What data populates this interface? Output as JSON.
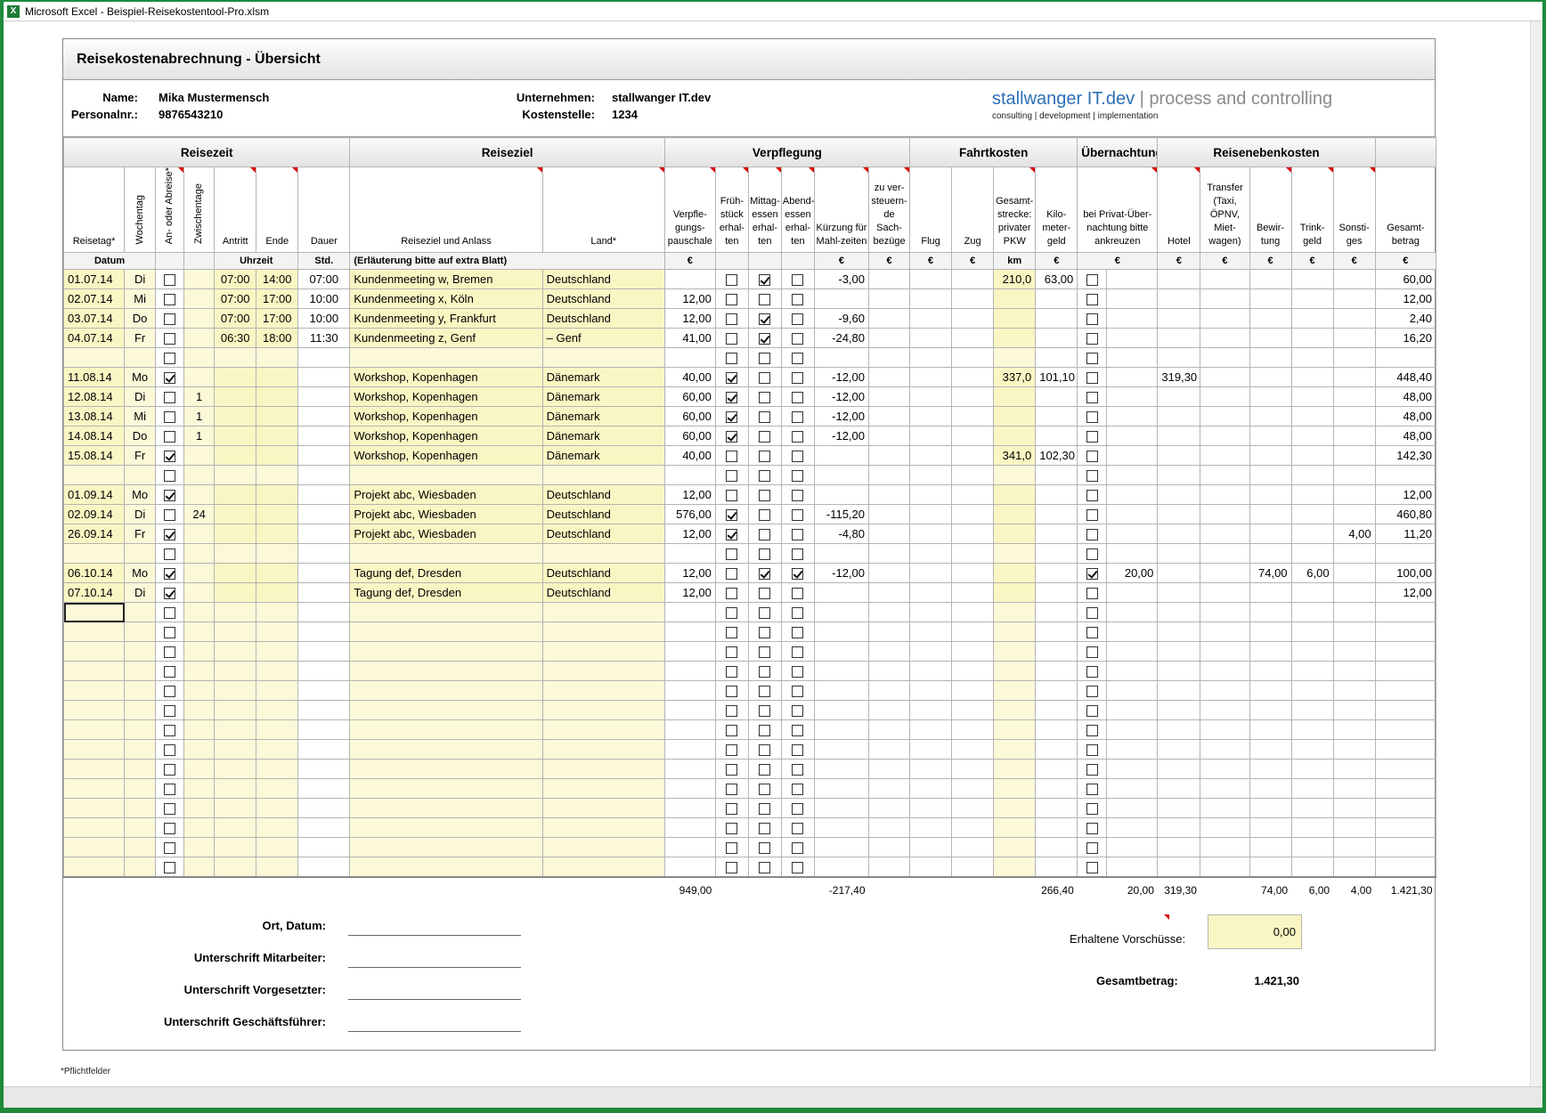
{
  "window": {
    "title": "Microsoft Excel - Beispiel-Reisekostentool-Pro.xlsm",
    "app_icon": "X"
  },
  "sheet": {
    "title": "Reisekostenabrechnung - Übersicht",
    "name_label": "Name:",
    "name_value": "Mika Mustermensch",
    "personnel_label": "Personalnr.:",
    "personnel_value": "9876543210",
    "company_label": "Unternehmen:",
    "company_value": "stallwanger IT.dev",
    "cost_center_label": "Kostenstelle:",
    "cost_center_value": "1234",
    "logo_main": "stallwanger IT.dev",
    "logo_sep": " | ",
    "logo_tail": "process and controlling",
    "logo_sub": "consulting | development | implementation"
  },
  "groups": {
    "reisezeit": "Reisezeit",
    "reiseziel": "Reiseziel",
    "verpflegung": "Verpflegung",
    "fahrtkosten": "Fahrtkosten",
    "uebernachtung": "Übernachtung",
    "nebenkosten": "Reisenebenkosten"
  },
  "headers": {
    "reisetag": "Reisetag*",
    "wochentag": "Wochentag",
    "an_ab": "An- oder Abreise*",
    "zwischentage": "Zwischentage",
    "antritt": "Antritt",
    "ende": "Ende",
    "dauer": "Dauer",
    "ziel": "Reiseziel und Anlass",
    "land": "Land*",
    "pauschale": "Verpfle-gungs-pauschale",
    "fruehstueck": "Früh-stück erhal-ten",
    "mittag": "Mittag-essen erhal-ten",
    "abend": "Abend-essen erhal-ten",
    "kuerzung": "Kürzung für Mahl-zeiten",
    "sachbezuege": "zu ver-steuern-de Sach-bezüge",
    "flug": "Flug",
    "zug": "Zug",
    "strecke": "Gesamt-strecke: privater PKW",
    "kilometergeld": "Kilo-meter-geld",
    "privat": "bei Privat-Über-nachtung bitte ankreuzen",
    "hotel": "Hotel",
    "transfer": "Transfer (Taxi, ÖPNV, Miet-wagen)",
    "bewirtung": "Bewir-tung",
    "trinkgeld": "Trink-geld",
    "sonstiges": "Sonsti-ges",
    "gesamt": "Gesamt-betrag"
  },
  "units": {
    "datum": "Datum",
    "uhrzeit": "Uhrzeit",
    "std": "Std.",
    "erlaeuterung": "(Erläuterung bitte auf extra Blatt)",
    "eur": "€",
    "km": "km"
  },
  "rows": [
    {
      "date": "01.07.14",
      "wd": "Di",
      "anab": false,
      "zw": "",
      "start": "07:00",
      "end": "14:00",
      "dur": "07:00",
      "ziel": "Kundenmeeting w, Bremen",
      "land": "Deutschland",
      "pausch": "",
      "f": false,
      "m": true,
      "a": false,
      "kuerz": "-3,00",
      "sach": "",
      "flug": "",
      "zug": "",
      "km": "210,0",
      "kmgeld": "63,00",
      "privat": false,
      "privat_amt": "",
      "hotel": "",
      "transfer": "",
      "bewirt": "",
      "trink": "",
      "sonst": "",
      "gesamt": "60,00"
    },
    {
      "date": "02.07.14",
      "wd": "Mi",
      "anab": false,
      "zw": "",
      "start": "07:00",
      "end": "17:00",
      "dur": "10:00",
      "ziel": "Kundenmeeting x, Köln",
      "land": "Deutschland",
      "pausch": "12,00",
      "f": false,
      "m": false,
      "a": false,
      "kuerz": "",
      "sach": "",
      "flug": "",
      "zug": "",
      "km": "",
      "kmgeld": "",
      "privat": false,
      "privat_amt": "",
      "hotel": "",
      "transfer": "",
      "bewirt": "",
      "trink": "",
      "sonst": "",
      "gesamt": "12,00"
    },
    {
      "date": "03.07.14",
      "wd": "Do",
      "anab": false,
      "zw": "",
      "start": "07:00",
      "end": "17:00",
      "dur": "10:00",
      "ziel": "Kundenmeeting y, Frankfurt",
      "land": "Deutschland",
      "pausch": "12,00",
      "f": false,
      "m": true,
      "a": false,
      "kuerz": "-9,60",
      "sach": "",
      "flug": "",
      "zug": "",
      "km": "",
      "kmgeld": "",
      "privat": false,
      "privat_amt": "",
      "hotel": "",
      "transfer": "",
      "bewirt": "",
      "trink": "",
      "sonst": "",
      "gesamt": "2,40"
    },
    {
      "date": "04.07.14",
      "wd": "Fr",
      "anab": false,
      "zw": "",
      "start": "06:30",
      "end": "18:00",
      "dur": "11:30",
      "ziel": "Kundenmeeting z, Genf",
      "land": "– Genf",
      "pausch": "41,00",
      "f": false,
      "m": true,
      "a": false,
      "kuerz": "-24,80",
      "sach": "",
      "flug": "",
      "zug": "",
      "km": "",
      "kmgeld": "",
      "privat": false,
      "privat_amt": "",
      "hotel": "",
      "transfer": "",
      "bewirt": "",
      "trink": "",
      "sonst": "",
      "gesamt": "16,20"
    },
    {
      "empty": true
    },
    {
      "date": "11.08.14",
      "wd": "Mo",
      "anab": true,
      "zw": "",
      "start": "",
      "end": "",
      "dur": "",
      "ziel": "Workshop, Kopenhagen",
      "land": "Dänemark",
      "pausch": "40,00",
      "f": true,
      "m": false,
      "a": false,
      "kuerz": "-12,00",
      "sach": "",
      "flug": "",
      "zug": "",
      "km": "337,0",
      "kmgeld": "101,10",
      "privat": false,
      "privat_amt": "",
      "hotel": "319,30",
      "transfer": "",
      "bewirt": "",
      "trink": "",
      "sonst": "",
      "gesamt": "448,40"
    },
    {
      "date": "12.08.14",
      "wd": "Di",
      "anab": false,
      "zw": "1",
      "start": "",
      "end": "",
      "dur": "",
      "ziel": "Workshop, Kopenhagen",
      "land": "Dänemark",
      "pausch": "60,00",
      "f": true,
      "m": false,
      "a": false,
      "kuerz": "-12,00",
      "sach": "",
      "flug": "",
      "zug": "",
      "km": "",
      "kmgeld": "",
      "privat": false,
      "privat_amt": "",
      "hotel": "",
      "transfer": "",
      "bewirt": "",
      "trink": "",
      "sonst": "",
      "gesamt": "48,00"
    },
    {
      "date": "13.08.14",
      "wd": "Mi",
      "anab": false,
      "zw": "1",
      "start": "",
      "end": "",
      "dur": "",
      "ziel": "Workshop, Kopenhagen",
      "land": "Dänemark",
      "pausch": "60,00",
      "f": true,
      "m": false,
      "a": false,
      "kuerz": "-12,00",
      "sach": "",
      "flug": "",
      "zug": "",
      "km": "",
      "kmgeld": "",
      "privat": false,
      "privat_amt": "",
      "hotel": "",
      "transfer": "",
      "bewirt": "",
      "trink": "",
      "sonst": "",
      "gesamt": "48,00"
    },
    {
      "date": "14.08.14",
      "wd": "Do",
      "anab": false,
      "zw": "1",
      "start": "",
      "end": "",
      "dur": "",
      "ziel": "Workshop, Kopenhagen",
      "land": "Dänemark",
      "pausch": "60,00",
      "f": true,
      "m": false,
      "a": false,
      "kuerz": "-12,00",
      "sach": "",
      "flug": "",
      "zug": "",
      "km": "",
      "kmgeld": "",
      "privat": false,
      "privat_amt": "",
      "hotel": "",
      "transfer": "",
      "bewirt": "",
      "trink": "",
      "sonst": "",
      "gesamt": "48,00"
    },
    {
      "date": "15.08.14",
      "wd": "Fr",
      "anab": true,
      "zw": "",
      "start": "",
      "end": "",
      "dur": "",
      "ziel": "Workshop, Kopenhagen",
      "land": "Dänemark",
      "pausch": "40,00",
      "f": false,
      "m": false,
      "a": false,
      "kuerz": "",
      "sach": "",
      "flug": "",
      "zug": "",
      "km": "341,0",
      "kmgeld": "102,30",
      "privat": false,
      "privat_amt": "",
      "hotel": "",
      "transfer": "",
      "bewirt": "",
      "trink": "",
      "sonst": "",
      "gesamt": "142,30"
    },
    {
      "empty": true
    },
    {
      "date": "01.09.14",
      "wd": "Mo",
      "anab": true,
      "zw": "",
      "start": "",
      "end": "",
      "dur": "",
      "ziel": "Projekt abc, Wiesbaden",
      "land": "Deutschland",
      "pausch": "12,00",
      "f": false,
      "m": false,
      "a": false,
      "kuerz": "",
      "sach": "",
      "flug": "",
      "zug": "",
      "km": "",
      "kmgeld": "",
      "privat": false,
      "privat_amt": "",
      "hotel": "",
      "transfer": "",
      "bewirt": "",
      "trink": "",
      "sonst": "",
      "gesamt": "12,00"
    },
    {
      "date": "02.09.14",
      "wd": "Di",
      "anab": false,
      "zw": "24",
      "start": "",
      "end": "",
      "dur": "",
      "ziel": "Projekt abc, Wiesbaden",
      "land": "Deutschland",
      "pausch": "576,00",
      "f": true,
      "m": false,
      "a": false,
      "kuerz": "-115,20",
      "sach": "",
      "flug": "",
      "zug": "",
      "km": "",
      "kmgeld": "",
      "privat": false,
      "privat_amt": "",
      "hotel": "",
      "transfer": "",
      "bewirt": "",
      "trink": "",
      "sonst": "",
      "gesamt": "460,80"
    },
    {
      "date": "26.09.14",
      "wd": "Fr",
      "anab": true,
      "zw": "",
      "start": "",
      "end": "",
      "dur": "",
      "ziel": "Projekt abc, Wiesbaden",
      "land": "Deutschland",
      "pausch": "12,00",
      "f": true,
      "m": false,
      "a": false,
      "kuerz": "-4,80",
      "sach": "",
      "flug": "",
      "zug": "",
      "km": "",
      "kmgeld": "",
      "privat": false,
      "privat_amt": "",
      "hotel": "",
      "transfer": "",
      "bewirt": "",
      "trink": "",
      "sonst": "4,00",
      "gesamt": "11,20"
    },
    {
      "empty": true
    },
    {
      "date": "06.10.14",
      "wd": "Mo",
      "anab": true,
      "zw": "",
      "start": "",
      "end": "",
      "dur": "",
      "ziel": "Tagung def, Dresden",
      "land": "Deutschland",
      "pausch": "12,00",
      "f": false,
      "m": true,
      "a": true,
      "kuerz": "-12,00",
      "sach": "",
      "flug": "",
      "zug": "",
      "km": "",
      "kmgeld": "",
      "privat": true,
      "privat_amt": "20,00",
      "hotel": "",
      "transfer": "",
      "bewirt": "74,00",
      "trink": "6,00",
      "sonst": "",
      "gesamt": "100,00"
    },
    {
      "date": "07.10.14",
      "wd": "Di",
      "anab": true,
      "zw": "",
      "start": "",
      "end": "",
      "dur": "",
      "ziel": "Tagung def, Dresden",
      "land": "Deutschland",
      "pausch": "12,00",
      "f": false,
      "m": false,
      "a": false,
      "kuerz": "",
      "sach": "",
      "flug": "",
      "zug": "",
      "km": "",
      "kmgeld": "",
      "privat": false,
      "privat_amt": "",
      "hotel": "",
      "transfer": "",
      "bewirt": "",
      "trink": "",
      "sonst": "",
      "gesamt": "12,00"
    },
    {
      "blank": true
    },
    {
      "blank": true
    },
    {
      "blank": true
    },
    {
      "blank": true
    },
    {
      "blank": true
    },
    {
      "blank": true
    },
    {
      "blank": true
    },
    {
      "blank": true
    },
    {
      "blank": true
    },
    {
      "blank": true
    },
    {
      "blank": true
    },
    {
      "blank": true
    },
    {
      "blank": true
    },
    {
      "blank": true
    }
  ],
  "totals": {
    "pausch": "949,00",
    "kuerz": "-217,40",
    "kmgeld": "266,40",
    "privat_amt": "20,00",
    "hotel": "319,30",
    "bewirt": "74,00",
    "trink": "6,00",
    "sonst": "4,00",
    "gesamt": "1.421,30"
  },
  "footer": {
    "ort_datum": "Ort, Datum:",
    "sig_mitarbeiter": "Unterschrift Mitarbeiter:",
    "sig_vorgesetzter": "Unterschrift Vorgesetzter:",
    "sig_gf": "Unterschrift Geschäftsführer:",
    "advance_label": "Erhaltene Vorschüsse:",
    "advance_value": "0,00",
    "total_label": "Gesamtbetrag:",
    "total_value": "1.421,30",
    "footnote": "*Pflichtfelder"
  }
}
